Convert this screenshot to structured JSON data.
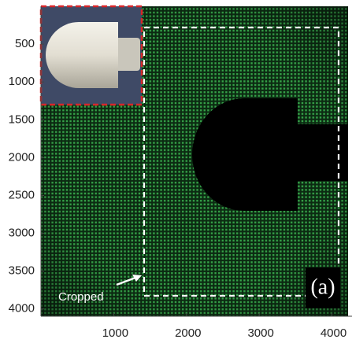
{
  "axes": {
    "xlim": [
      0,
      4200
    ],
    "ylim": [
      0,
      4096
    ],
    "xticks": [
      1000,
      2000,
      3000,
      4000
    ],
    "yticks": [
      500,
      1000,
      1500,
      2000,
      2500,
      3000,
      3500,
      4000
    ]
  },
  "annotations": {
    "cropped": "Cropped",
    "panel": "(a)"
  }
}
